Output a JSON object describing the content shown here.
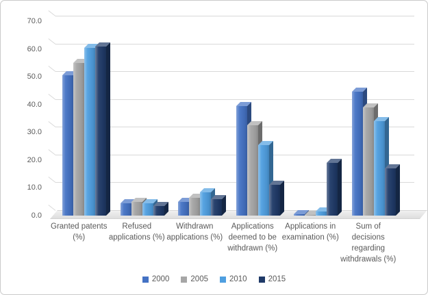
{
  "chart_data": {
    "type": "bar",
    "style": "3d-clustered-column",
    "title": "",
    "xlabel": "",
    "ylabel": "",
    "categories": [
      "Granted patents (%)",
      "Refused applications (%)",
      "Withdrawn applications (%)",
      "Applications deemed to be withdrawn (%)",
      "Applications in examination (%)",
      "Sum of decisions regarding withdrawals (%)"
    ],
    "series": [
      {
        "name": "2000",
        "color": "#4472C4",
        "values": [
          50.5,
          4.5,
          5.0,
          39.5,
          0.5,
          44.5
        ]
      },
      {
        "name": "2005",
        "color": "#A6A6A6",
        "values": [
          55.0,
          5.0,
          6.5,
          32.5,
          0.3,
          39.0
        ]
      },
      {
        "name": "2010",
        "color": "#4F9FE0",
        "values": [
          60.5,
          4.5,
          8.5,
          25.5,
          1.5,
          34.0
        ]
      },
      {
        "name": "2015",
        "color": "#1F3A68",
        "values": [
          61.0,
          3.5,
          6.0,
          11.0,
          19.0,
          17.0
        ]
      }
    ],
    "ylim": [
      0,
      70
    ],
    "ytick_step": 10,
    "ytick_labels": [
      "0.0",
      "10.0",
      "20.0",
      "30.0",
      "40.0",
      "50.0",
      "60.0",
      "70.0"
    ],
    "grid": true,
    "legend_position": "bottom",
    "axis_text_color": "#595959",
    "gridline_color": "#D9D9D9"
  }
}
